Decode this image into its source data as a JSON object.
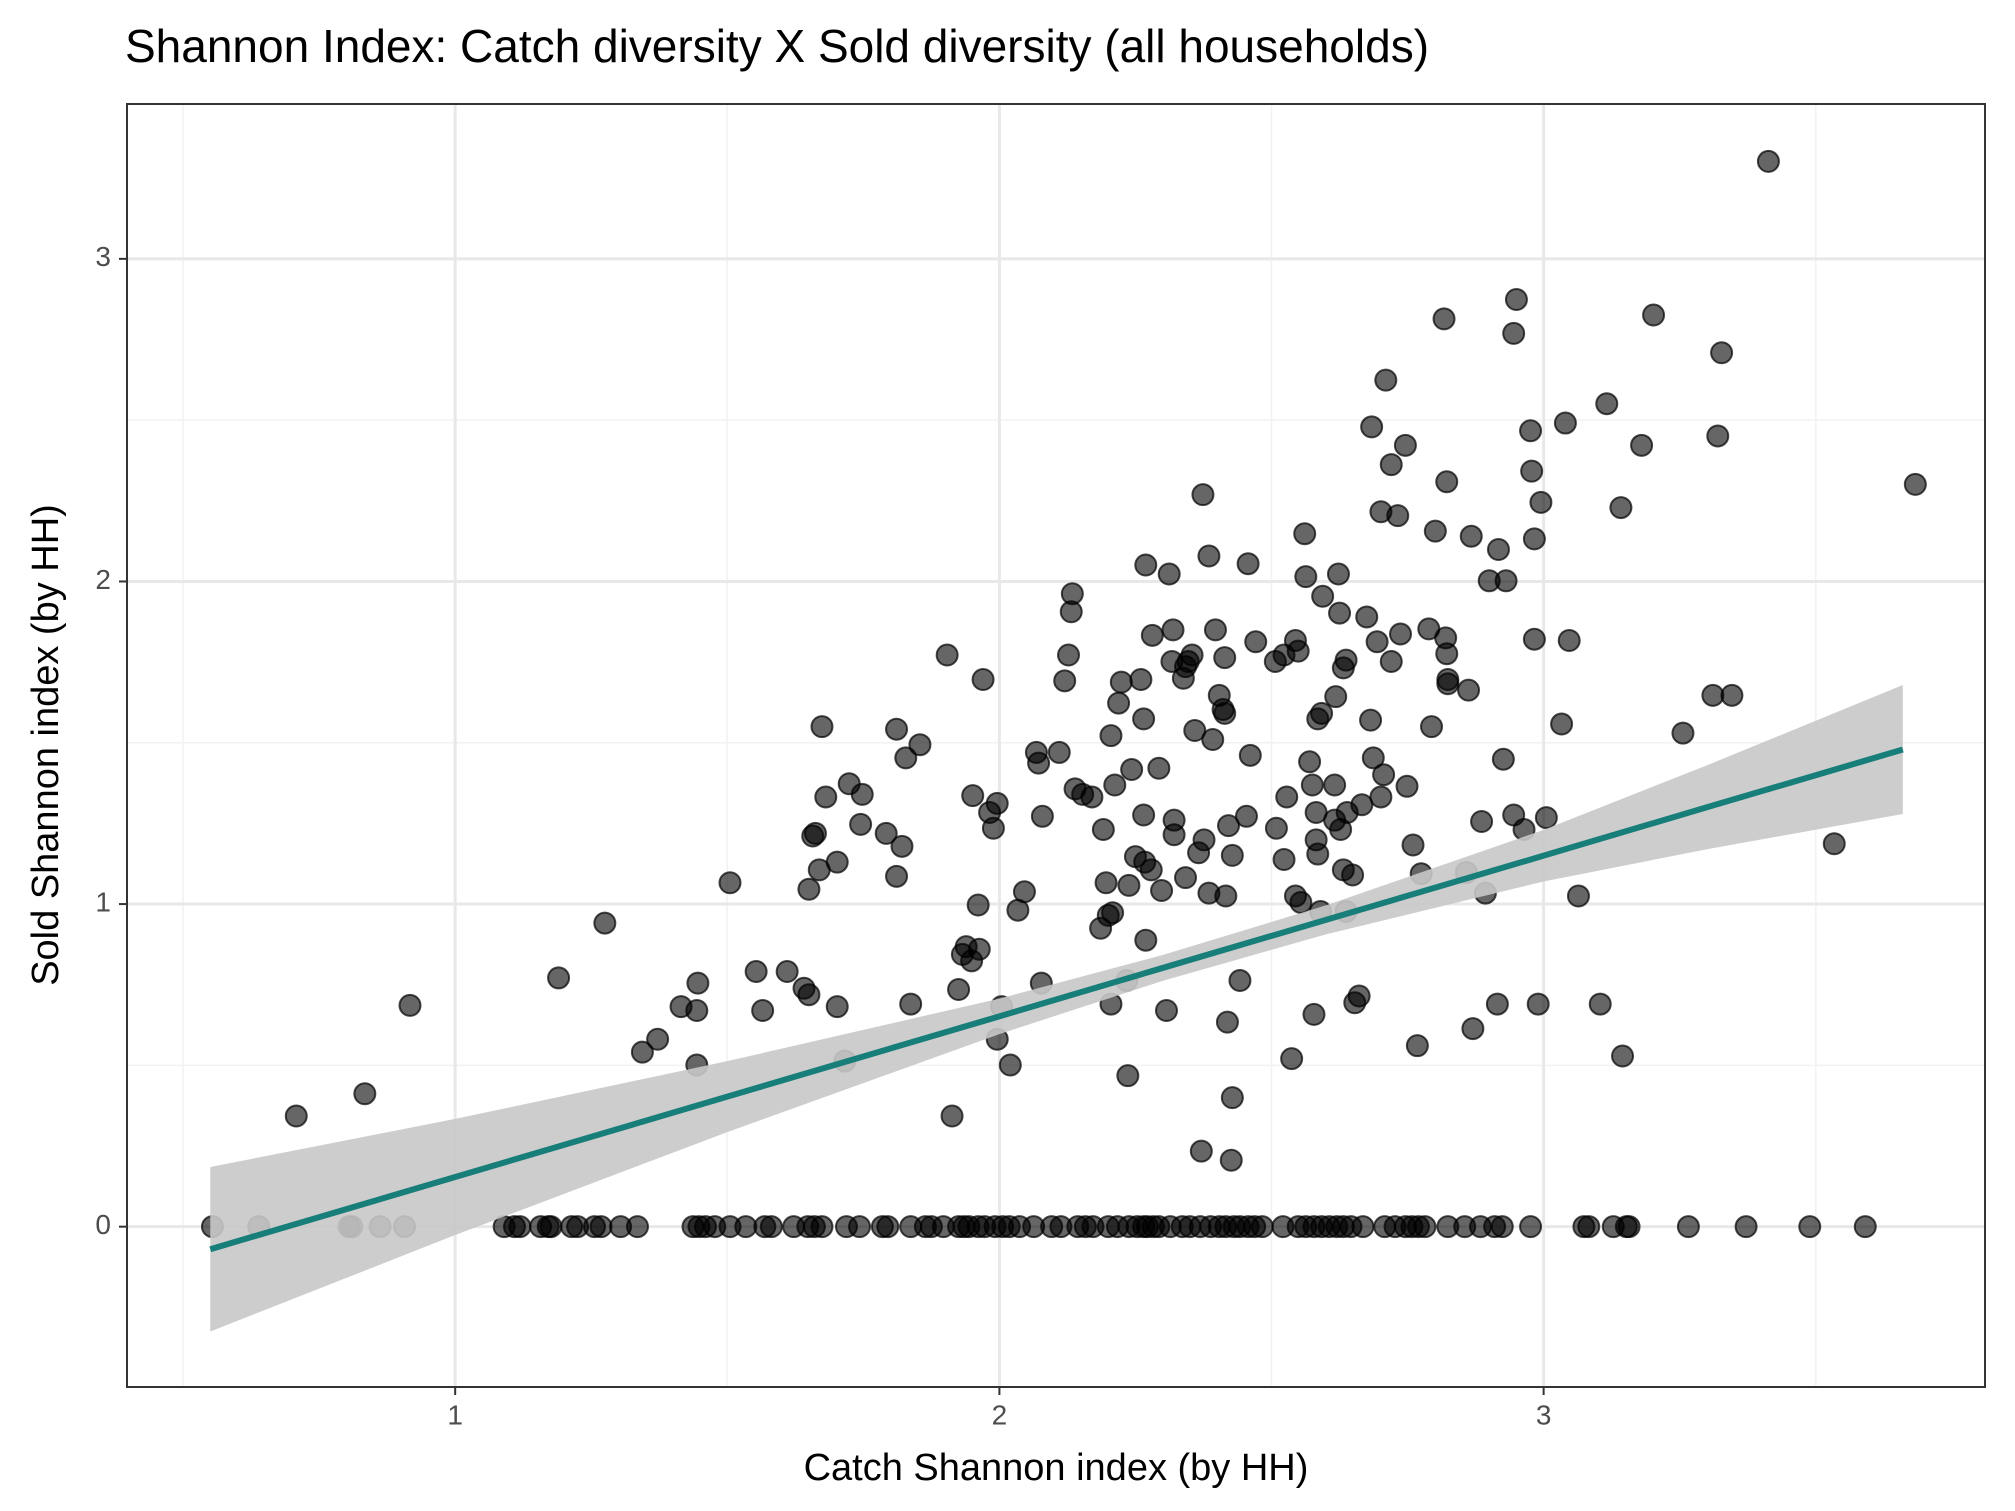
{
  "chart_data": {
    "type": "scatter",
    "title": "Shannon Index: Catch diversity X Sold diversity (all households)",
    "x_label": "Catch Shannon index (by HH)",
    "y_label": "Sold Shannon index (by HH)",
    "xlim": [
      0.397,
      3.811
    ],
    "ylim": [
      -0.497,
      3.48
    ],
    "xticks": [
      1,
      2,
      3
    ],
    "yticks": [
      0,
      1,
      2,
      3
    ],
    "grid": true,
    "point_color": "#000000",
    "x": [
      0.554,
      0.639,
      0.805,
      0.81,
      0.862,
      0.907,
      1.09,
      1.109,
      1.119,
      1.157,
      1.171,
      1.176,
      1.214,
      1.225,
      1.256,
      1.268,
      1.304,
      1.335,
      1.437,
      1.448,
      1.46,
      1.477,
      1.505,
      1.534,
      1.569,
      1.581,
      1.622,
      1.648,
      1.66,
      1.674,
      1.719,
      1.743,
      1.785,
      1.795,
      1.837,
      1.864,
      1.875,
      1.897,
      1.925,
      1.935,
      1.944,
      1.961,
      1.973,
      1.992,
      2.006,
      2.018,
      2.037,
      2.063,
      2.096,
      2.113,
      2.144,
      2.158,
      2.172,
      2.2,
      2.217,
      2.238,
      2.253,
      2.265,
      2.272,
      2.283,
      2.293,
      2.314,
      2.336,
      2.35,
      2.369,
      2.388,
      2.404,
      2.416,
      2.431,
      2.442,
      2.457,
      2.469,
      2.483,
      2.521,
      2.549,
      2.563,
      2.578,
      2.592,
      2.606,
      2.62,
      2.632,
      2.646,
      2.668,
      2.708,
      2.727,
      2.746,
      2.758,
      2.77,
      2.782,
      2.824,
      2.855,
      2.884,
      2.91,
      2.924,
      2.976,
      3.074,
      3.083,
      3.128,
      3.152,
      3.157,
      3.266,
      3.372,
      3.489,
      3.591,
      0.708,
      0.834,
      0.917,
      1.19,
      1.275,
      1.344,
      1.372,
      1.415,
      1.444,
      1.446,
      1.444,
      1.505,
      1.553,
      1.565,
      1.61,
      1.641,
      1.65,
      1.702,
      1.716,
      1.65,
      1.657,
      1.662,
      1.669,
      1.674,
      1.681,
      1.702,
      1.724,
      1.748,
      1.745,
      1.792,
      1.811,
      1.811,
      1.821,
      1.828,
      1.837,
      1.854,
      1.904,
      1.913,
      1.925,
      1.932,
      1.939,
      1.949,
      1.951,
      1.961,
      1.963,
      1.97,
      1.982,
      1.989,
      1.996,
      2.004,
      1.996,
      2.02,
      2.034,
      2.046,
      2.068,
      2.072,
      2.077,
      2.079,
      2.11,
      2.12,
      2.127,
      2.132,
      2.134,
      2.139,
      2.153,
      2.17,
      2.186,
      2.191,
      2.196,
      2.2,
      2.205,
      2.208,
      2.205,
      2.212,
      2.219,
      2.224,
      2.234,
      2.236,
      2.238,
      2.243,
      2.25,
      2.26,
      2.265,
      2.265,
      2.267,
      2.269,
      2.269,
      2.279,
      2.281,
      2.293,
      2.298,
      2.307,
      2.312,
      2.317,
      2.319,
      2.321,
      2.321,
      2.338,
      2.342,
      2.342,
      2.347,
      2.354,
      2.359,
      2.366,
      2.376,
      2.374,
      2.371,
      2.385,
      2.385,
      2.392,
      2.397,
      2.404,
      2.411,
      2.414,
      2.414,
      2.416,
      2.419,
      2.421,
      2.426,
      2.428,
      2.428,
      2.442,
      2.454,
      2.457,
      2.461,
      2.471,
      2.507,
      2.509,
      2.523,
      2.523,
      2.528,
      2.537,
      2.544,
      2.544,
      2.549,
      2.554,
      2.561,
      2.563,
      2.57,
      2.575,
      2.578,
      2.582,
      2.585,
      2.582,
      2.585,
      2.59,
      2.592,
      2.594,
      2.616,
      2.616,
      2.618,
      2.623,
      2.625,
      2.627,
      2.632,
      2.632,
      2.637,
      2.637,
      2.639,
      2.649,
      2.653,
      2.661,
      2.666,
      2.675,
      2.682,
      2.684,
      2.687,
      2.694,
      2.701,
      2.701,
      2.706,
      2.71,
      2.72,
      2.72,
      2.732,
      2.737,
      2.746,
      2.749,
      2.76,
      2.768,
      2.775,
      2.794,
      2.789,
      2.801,
      2.82,
      2.817,
      2.822,
      2.822,
      2.824,
      2.824,
      2.858,
      2.862,
      2.867,
      2.87,
      2.886,
      2.893,
      2.9,
      2.917,
      2.915,
      2.926,
      2.931,
      2.945,
      2.945,
      2.95,
      2.964,
      2.976,
      2.978,
      2.983,
      2.983,
      2.99,
      2.995,
      3.005,
      3.033,
      3.04,
      3.047,
      3.064,
      3.104,
      3.116,
      3.142,
      3.145,
      3.18,
      3.202,
      3.256,
      3.311,
      3.32,
      3.327,
      3.346,
      3.413,
      3.534,
      3.683
    ],
    "y": [
      0,
      0,
      0,
      0,
      0,
      0,
      0,
      0,
      0,
      0,
      0,
      0,
      0,
      0,
      0,
      0,
      0,
      0,
      0,
      0,
      0,
      0,
      0,
      0,
      0,
      0,
      0,
      0,
      0,
      0,
      0,
      0,
      0,
      0,
      0,
      0,
      0,
      0,
      0,
      0,
      0,
      0,
      0,
      0,
      0,
      0,
      0,
      0,
      0,
      0,
      0,
      0,
      0,
      0,
      0,
      0,
      0,
      0,
      0,
      0,
      0,
      0,
      0,
      0,
      0,
      0,
      0,
      0,
      0,
      0,
      0,
      0,
      0,
      0,
      0,
      0,
      0,
      0,
      0,
      0,
      0,
      0,
      0,
      0,
      0,
      0,
      0,
      0,
      0,
      0,
      0,
      0,
      0,
      0,
      0,
      0,
      0,
      0,
      0,
      0,
      0,
      0,
      0,
      0,
      0.343,
      0.412,
      0.686,
      0.771,
      0.941,
      0.541,
      0.581,
      0.682,
      0.67,
      0.755,
      0.501,
      1.066,
      0.791,
      0.67,
      0.791,
      0.739,
      0.719,
      0.682,
      0.513,
      1.046,
      1.211,
      1.219,
      1.106,
      1.55,
      1.332,
      1.13,
      1.373,
      1.34,
      1.247,
      1.219,
      1.542,
      1.086,
      1.179,
      1.453,
      0.69,
      1.494,
      1.772,
      0.343,
      0.735,
      0.844,
      0.868,
      0.824,
      1.336,
      0.997,
      0.86,
      1.696,
      1.284,
      1.235,
      1.312,
      0.682,
      0.581,
      0.501,
      0.981,
      1.038,
      1.47,
      1.437,
      0.755,
      1.272,
      1.47,
      1.692,
      1.772,
      1.906,
      1.962,
      1.357,
      1.34,
      1.332,
      0.925,
      1.231,
      1.066,
      0.965,
      1.522,
      0.973,
      0.69,
      1.369,
      1.623,
      1.688,
      0.763,
      0.468,
      1.058,
      1.417,
      1.147,
      1.696,
      1.574,
      1.276,
      1.13,
      0.888,
      2.051,
      1.106,
      1.833,
      1.421,
      1.042,
      0.67,
      2.023,
      1.752,
      1.85,
      1.26,
      1.215,
      1.7,
      1.736,
      1.082,
      1.752,
      1.772,
      1.538,
      1.159,
      1.199,
      2.269,
      0.234,
      2.079,
      1.034,
      1.51,
      1.85,
      1.647,
      1.603,
      1.591,
      1.764,
      1.025,
      0.634,
      1.243,
      0.206,
      0.4,
      1.151,
      0.763,
      1.272,
      2.055,
      1.461,
      1.813,
      1.752,
      1.235,
      1.138,
      1.772,
      1.332,
      0.521,
      1.817,
      1.025,
      1.784,
      1.005,
      2.148,
      2.015,
      1.441,
      1.369,
      0.658,
      1.284,
      1.574,
      1.199,
      1.155,
      0.977,
      1.591,
      1.954,
      1.369,
      1.26,
      1.643,
      2.023,
      1.902,
      1.231,
      1.106,
      1.732,
      1.756,
      0.977,
      1.284,
      1.09,
      0.694,
      0.715,
      1.308,
      1.89,
      1.57,
      2.479,
      1.453,
      1.813,
      1.332,
      2.216,
      1.401,
      2.624,
      1.752,
      2.362,
      2.204,
      1.837,
      2.422,
      1.365,
      1.183,
      0.561,
      1.094,
      1.55,
      1.853,
      2.156,
      1.825,
      2.814,
      2.309,
      1.776,
      1.683,
      1.696,
      1.098,
      1.663,
      2.14,
      0.614,
      1.256,
      1.034,
      2.002,
      2.099,
      0.69,
      1.449,
      2.002,
      1.276,
      2.769,
      2.874,
      1.231,
      2.467,
      2.342,
      2.132,
      1.821,
      0.69,
      2.245,
      1.268,
      1.558,
      2.491,
      1.817,
      1.025,
      0.69,
      2.551,
      2.229,
      0.529,
      2.422,
      2.826,
      1.53,
      1.647,
      2.451,
      2.709,
      1.647,
      3.302,
      1.187,
      2.301
    ],
    "fit": {
      "color": "#177e7a",
      "band_color": "#c8c8c8",
      "x": [
        0.55,
        1.0,
        1.5,
        2.0,
        2.3,
        2.6,
        3.0,
        3.3,
        3.66
      ],
      "y": [
        -0.07,
        0.154,
        0.403,
        0.652,
        0.802,
        0.951,
        1.15,
        1.3,
        1.479
      ],
      "ymin": [
        -0.325,
        -0.026,
        0.293,
        0.597,
        0.762,
        0.906,
        1.07,
        1.17,
        1.279
      ],
      "ymax": [
        0.185,
        0.334,
        0.513,
        0.707,
        0.842,
        0.996,
        1.23,
        1.43,
        1.679
      ]
    }
  }
}
